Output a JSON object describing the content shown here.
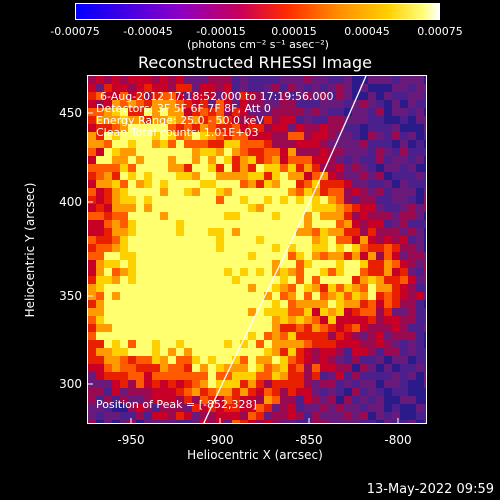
{
  "colorbar": {
    "ticks": [
      "-0.00075",
      "-0.00045",
      "-0.00015",
      "0.00015",
      "0.00045",
      "0.00075"
    ],
    "unit": "(photons cm⁻² s⁻¹ asec⁻²)"
  },
  "title": "Reconstructed RHESSI Image",
  "info": {
    "line1": "6-Aug-2012 17:18:52.000 to 17:19:56.000",
    "line2": "Detectors: 3F 5F 6F 7F 8F, Att 0",
    "line3": "Energy Range: 25.0 - 50.0 keV",
    "line4": "Clean    Total counts: 1.01E+03",
    "peak": "Position of Peak = [-852,328]"
  },
  "axes": {
    "xlabel": "Heliocentric X (arcsec)",
    "ylabel": "Heliocentric Y (arcsec)",
    "xticks": [
      "-950",
      "-900",
      "-850",
      "-800"
    ],
    "yticks": [
      "450",
      "400",
      "350",
      "300"
    ]
  },
  "timestamp": "13-May-2022 09:59",
  "colors": {
    "background": "#000000",
    "map_low": "#3b1a78",
    "map_mid": "#c8003c",
    "map_high": "#ffff60"
  }
}
